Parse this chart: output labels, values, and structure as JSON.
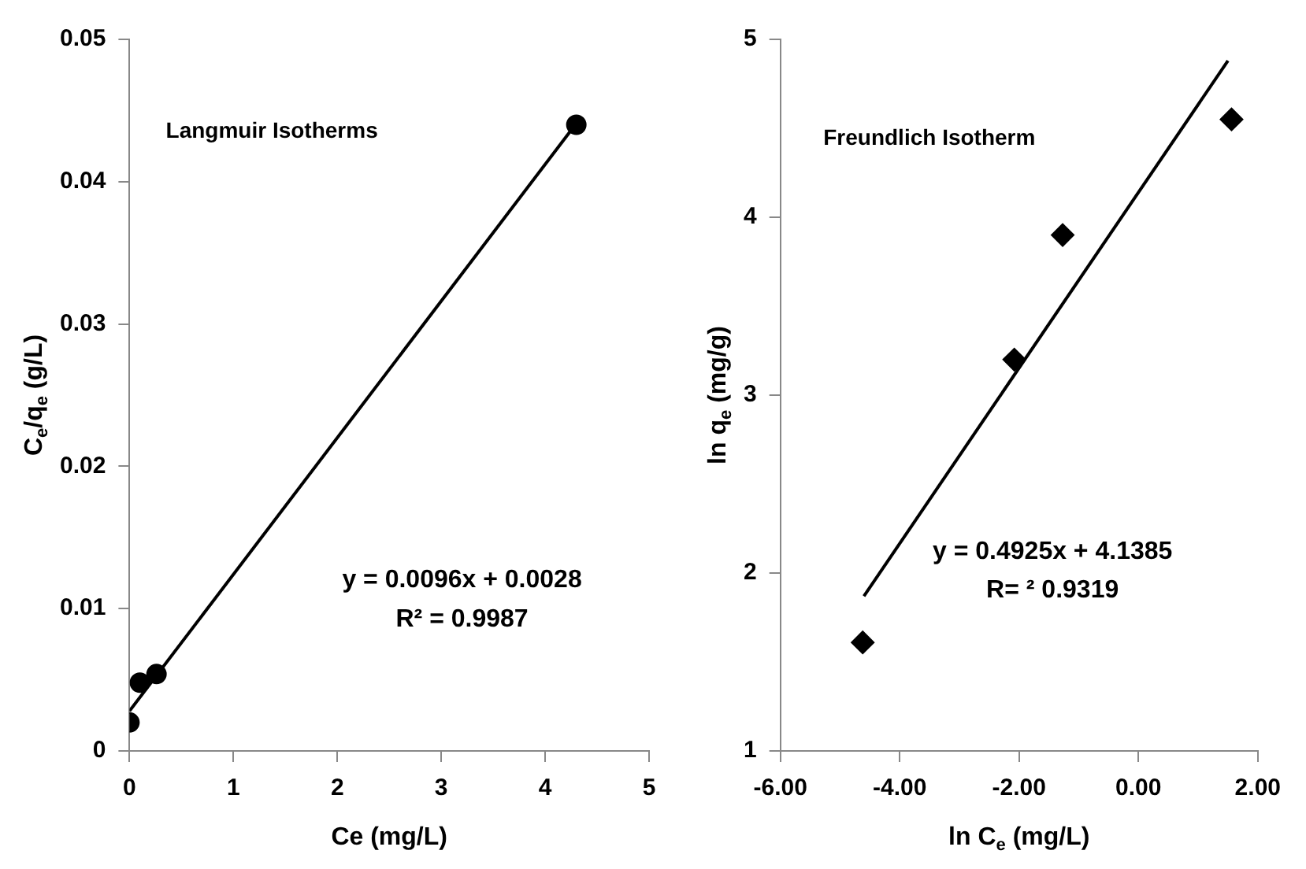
{
  "chart_data": [
    {
      "type": "scatter",
      "xlabel": "Ce (mg/L)",
      "ylabel": "C$_{e}$/q$_{e}$ (g/L)",
      "xlim": [
        0,
        5
      ],
      "xticks": [
        0,
        1,
        2,
        3,
        4,
        5
      ],
      "ylim": [
        0,
        0.05
      ],
      "yticks": [
        0,
        0.01,
        0.02,
        0.03,
        0.04,
        0.05
      ],
      "grid": false,
      "legend": false,
      "annotations": [
        "Langmuir Isotherms",
        "y = 0.0096x + 0.0028",
        "R² = 0.9987"
      ],
      "series": [
        {
          "type": "scatter",
          "color": "#000000",
          "marker": "circle",
          "x": [
            0,
            0.1,
            0.26,
            4.3
          ],
          "values": [
            0.002,
            0.0048,
            0.0054,
            0.044
          ]
        },
        {
          "type": "line",
          "color": "#000000",
          "marker": "none",
          "x": [
            0,
            4.3
          ],
          "values": [
            0.0028,
            0.0441
          ]
        }
      ]
    },
    {
      "type": "scatter",
      "xlabel": "ln C$_{e}$ (mg/L)",
      "ylabel": "ln q$_{e}$ (mg/g)",
      "xlim": [
        -6,
        2
      ],
      "xticks": [
        {
          "value": -6,
          "label": "-6.00"
        },
        {
          "value": -4,
          "label": "-4.00"
        },
        {
          "value": -2,
          "label": "-2.00"
        },
        {
          "value": 0,
          "label": "0.00"
        },
        {
          "value": 2,
          "label": "2.00"
        }
      ],
      "ylim": [
        1,
        5
      ],
      "yticks": [
        1,
        2,
        3,
        4,
        5
      ],
      "grid": false,
      "legend": false,
      "annotations": [
        "Freundlich Isotherm",
        "y = 0.4925x + 4.1385",
        "R= ² 0.9319"
      ],
      "series": [
        {
          "type": "scatter",
          "color": "#000000",
          "marker": "diamond",
          "x": [
            -4.62,
            -2.08,
            -1.27,
            1.56
          ],
          "values": [
            1.61,
            3.2,
            3.9,
            4.55
          ]
        },
        {
          "type": "line",
          "color": "#000000",
          "marker": "none",
          "x": [
            -4.6,
            1.5
          ],
          "values": [
            1.87,
            4.88
          ]
        }
      ]
    }
  ]
}
